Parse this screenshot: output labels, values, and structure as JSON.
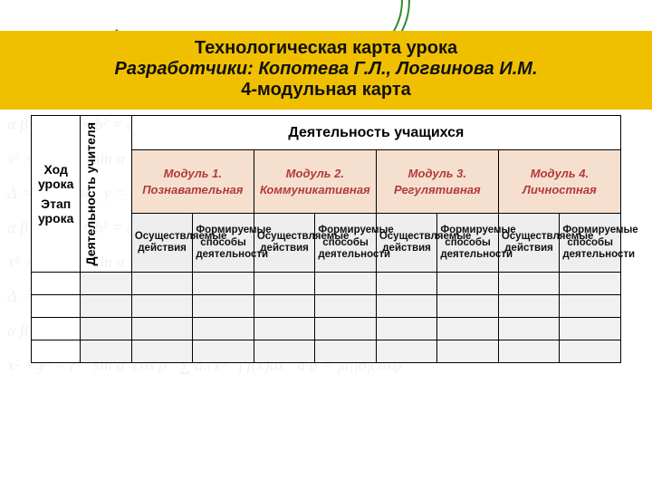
{
  "watermark_text": "x² + y² = r²   sin α  cos β   ∑ aₙ xⁿ   ∫ f(x)dx   a·b = |a||b|cosφ\nΔ = b² − 4ac   y = kx + b   S = πr²   V = ⁴⁄₃πr³   lim  n→∞\nα β γ δ   a² + b² = c²   log  e  π  φ   F = ma   E = mc²\nx² + y² = r²   sin α  cos β   ∑ aₙ xⁿ   ∫ f(x)dx   a·b = |a||b|cosφ\nΔ = b² − 4ac   y = kx + b   S = πr²   V = ⁴⁄₃πr³   lim  n→∞\nα β γ δ   a² + b² = c²   log  e  π  φ   F = ma   E = mc²\nx² + y² = r²   sin α  cos β   ∑ aₙ xⁿ   ∫ f(x)dx   a·b = |a||b|cosφ\nΔ = b² − 4ac   y = kx + b   S = πr²   V = ⁴⁄₃πr³   lim  n→∞\nα β γ δ   a² + b² = c²   log  e  π  φ   F = ma   E = mc²\nx² + y² = r²   sin α  cos β   ∑ aₙ xⁿ   ∫ f(x)dx   a·b = |a||b|cosφ",
  "title": {
    "line1": "Технологическая карта урока",
    "line2": "Разработчики: Копотева Г.Л., Логвинова И.М.",
    "line3": "4-модульная карта",
    "band_color": "#f0c000",
    "text_color": "#111111",
    "fontsize": 20
  },
  "swoosh": {
    "color": "#2e8b2e"
  },
  "table": {
    "side_header": {
      "top": "Ход урока",
      "bottom": "Этап урока"
    },
    "teacher_header": "Деятельность учителя",
    "students_header": "Деятельность учащихся",
    "modules": [
      {
        "title1": "Модуль 1.",
        "title2": "Познавательная"
      },
      {
        "title1": "Модуль 2.",
        "title2": "Коммуникативная"
      },
      {
        "title1": "Модуль 3.",
        "title2": "Регулятивная"
      },
      {
        "title1": "Модуль 4.",
        "title2": "Личностная"
      }
    ],
    "subheaders": {
      "actions": "Осуществляемые действия",
      "methods": "Формируемые способы деятельности"
    },
    "colors": {
      "module_bg": "#f5e0d0",
      "module_text": "#b33a3a",
      "sub_bg": "#eeeeee",
      "border": "#000000"
    },
    "empty_rows": 4
  }
}
